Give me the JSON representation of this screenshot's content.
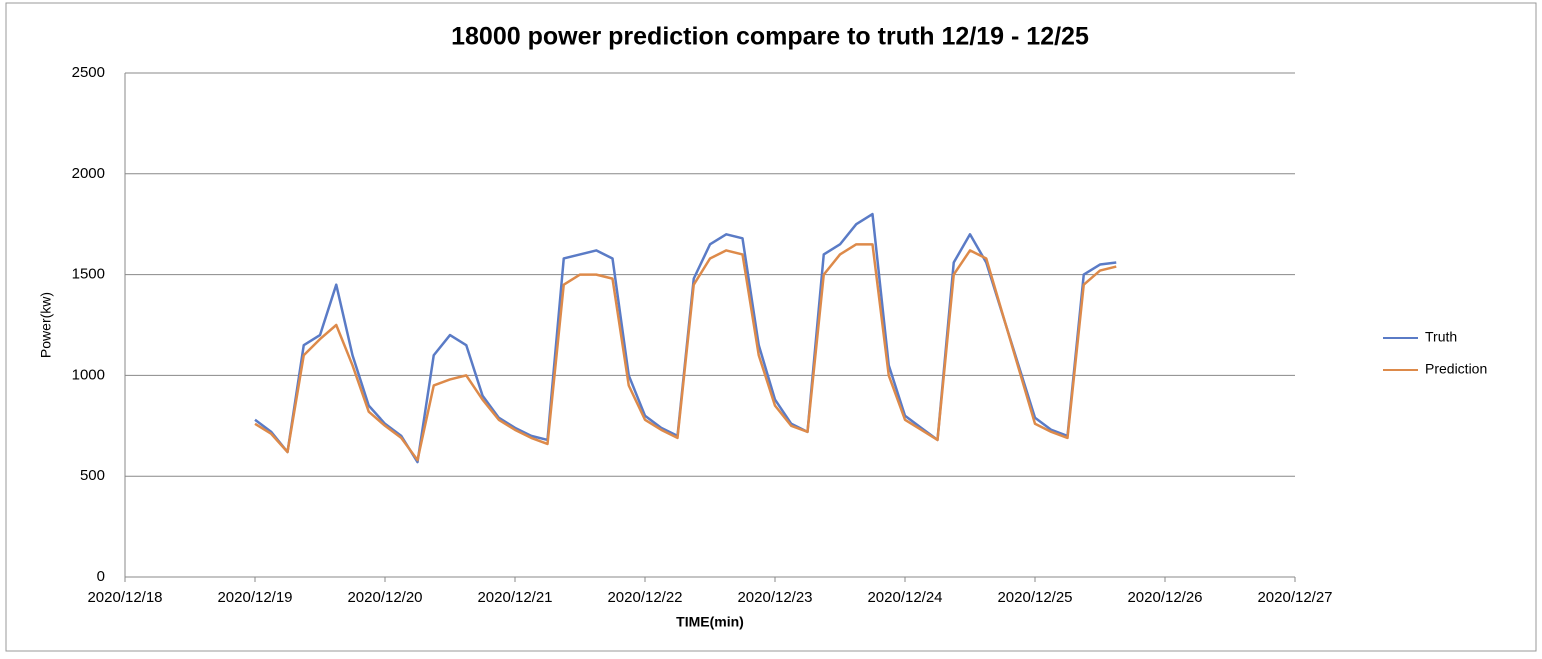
{
  "chart_data": {
    "type": "line",
    "title": "18000 power prediction compare to truth 12/19 - 12/25",
    "x_label": "TIME(min)",
    "y_label": "Power(kw)",
    "x": [
      44184,
      44184.125,
      44184.25,
      44184.375,
      44184.5,
      44184.625,
      44184.75,
      44184.875,
      44185,
      44185.125,
      44185.25,
      44185.375,
      44185.5,
      44185.625,
      44185.75,
      44185.875,
      44186,
      44186.125,
      44186.25,
      44186.375,
      44186.5,
      44186.625,
      44186.75,
      44186.875,
      44187,
      44187.125,
      44187.25,
      44187.375,
      44187.5,
      44187.625,
      44187.75,
      44187.875,
      44188,
      44188.125,
      44188.25,
      44188.375,
      44188.5,
      44188.625,
      44188.75,
      44188.875,
      44189,
      44189.125,
      44189.25,
      44189.375,
      44189.5,
      44189.625,
      44190,
      44190.125,
      44190.25,
      44190.375,
      44190.5,
      44190.625
    ],
    "series": [
      {
        "name": "Truth",
        "color": "#5a7bc6",
        "values": [
          780,
          720,
          620,
          1150,
          1200,
          1450,
          1100,
          850,
          760,
          700,
          570,
          1100,
          1200,
          1150,
          900,
          790,
          740,
          700,
          680,
          1580,
          1600,
          1620,
          1580,
          1000,
          800,
          740,
          700,
          1480,
          1650,
          1700,
          1680,
          1150,
          880,
          760,
          720,
          1600,
          1650,
          1750,
          1800,
          1050,
          800,
          740,
          680,
          1560,
          1700,
          1560,
          790,
          730,
          700,
          1500,
          1550,
          1560
        ]
      },
      {
        "name": "Prediction",
        "color": "#dd8a4a",
        "values": [
          760,
          710,
          620,
          1100,
          1180,
          1250,
          1050,
          820,
          750,
          690,
          580,
          950,
          980,
          1000,
          880,
          780,
          730,
          690,
          660,
          1450,
          1500,
          1500,
          1480,
          950,
          780,
          730,
          690,
          1450,
          1580,
          1620,
          1600,
          1100,
          850,
          750,
          720,
          1500,
          1600,
          1650,
          1650,
          1000,
          780,
          730,
          680,
          1500,
          1620,
          1580,
          760,
          720,
          690,
          1450,
          1520,
          1540
        ]
      }
    ],
    "xlim": [
      44183,
      44192
    ],
    "xticks": [
      {
        "value": 44183,
        "label": "2020/12/18"
      },
      {
        "value": 44184,
        "label": "2020/12/19"
      },
      {
        "value": 44185,
        "label": "2020/12/20"
      },
      {
        "value": 44186,
        "label": "2020/12/21"
      },
      {
        "value": 44187,
        "label": "2020/12/22"
      },
      {
        "value": 44188,
        "label": "2020/12/23"
      },
      {
        "value": 44189,
        "label": "2020/12/24"
      },
      {
        "value": 44190,
        "label": "2020/12/25"
      },
      {
        "value": 44191,
        "label": "2020/12/26"
      },
      {
        "value": 44192,
        "label": "2020/12/27"
      }
    ],
    "ylim": [
      0,
      2500
    ],
    "yticks": [
      0,
      500,
      1000,
      1500,
      2000,
      2500
    ],
    "grid": true,
    "legend": "right"
  }
}
